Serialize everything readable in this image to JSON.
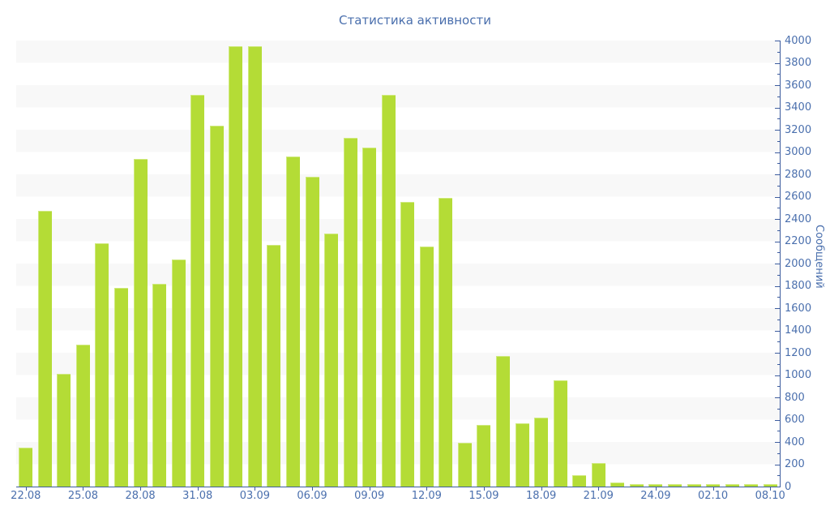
{
  "chart_data": {
    "type": "bar",
    "title": "Статистика активности",
    "xlabel": "",
    "ylabel": "Сообщений",
    "ylim": [
      0,
      4000
    ],
    "y_major_step": 200,
    "y_minor_step": 100,
    "legend": "none",
    "grid": "alternating horizontal bands of 200 units",
    "bars_total": 40,
    "x_tick_every": 3,
    "x_tick_labels": [
      "22.08",
      "25.08",
      "28.08",
      "31.08",
      "03.09",
      "06.09",
      "09.09",
      "12.09",
      "15.09",
      "18.09",
      "21.09",
      "24.09",
      "02.10",
      "08.10"
    ],
    "values": [
      350,
      2470,
      1010,
      1270,
      2180,
      1780,
      2940,
      1820,
      2040,
      3510,
      3240,
      3950,
      3950,
      2170,
      2960,
      2780,
      2270,
      3130,
      3040,
      3510,
      2550,
      2150,
      2590,
      390,
      550,
      1170,
      570,
      620,
      950,
      100,
      210,
      40,
      25,
      20,
      20,
      20,
      25,
      20,
      25,
      20
    ]
  },
  "colors": {
    "bar": "#b4dc36",
    "bar_highlight": "#cfe97d",
    "axis": "#3d5c9e",
    "text": "#4a6fad",
    "stripe": "#f8f8f8",
    "background": "#ffffff"
  }
}
